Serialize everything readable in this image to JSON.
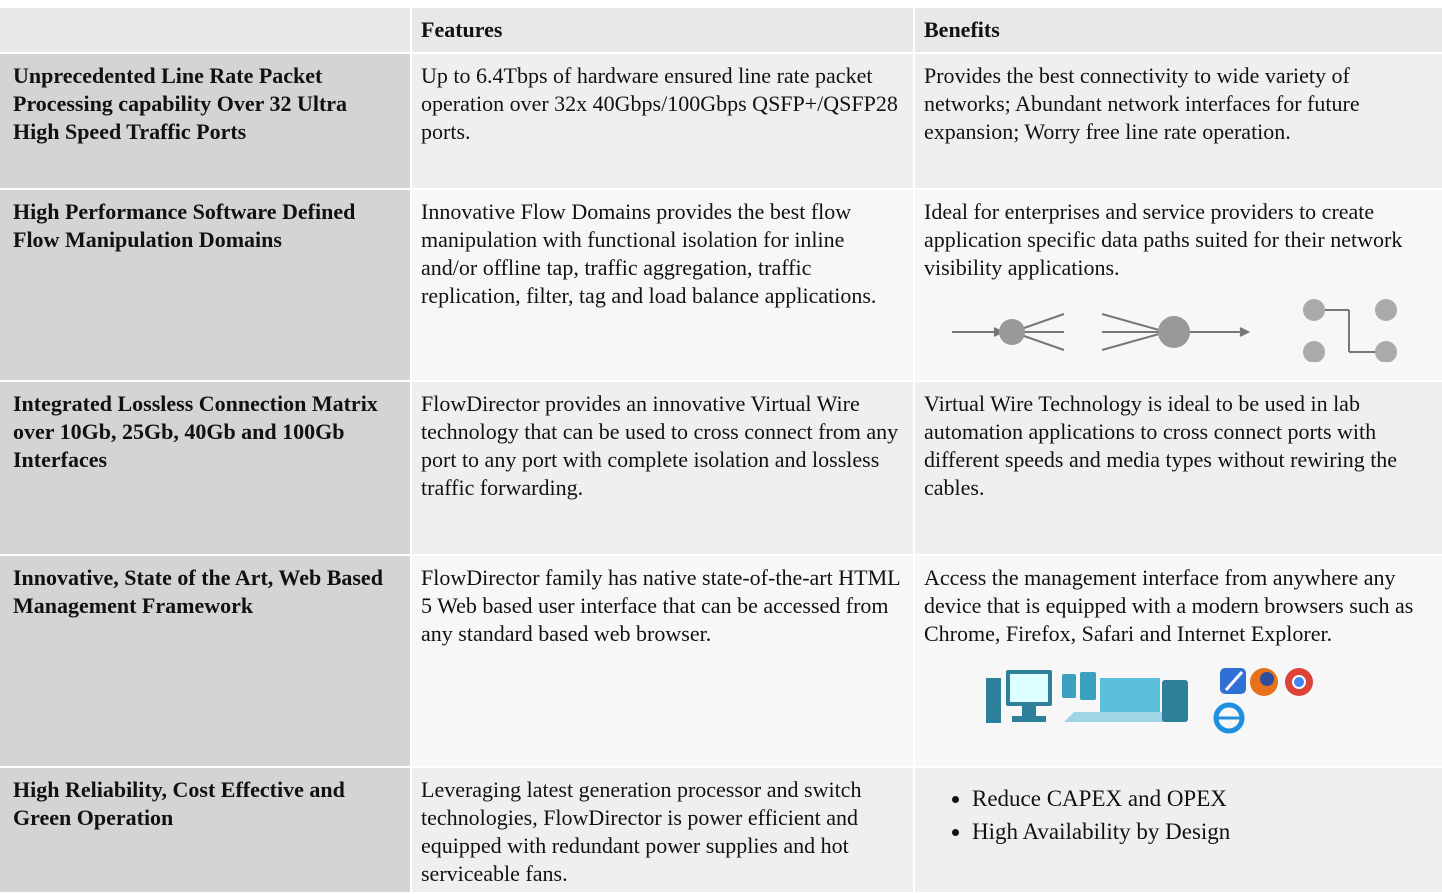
{
  "table": {
    "header": [
      "Features",
      "Benefits"
    ],
    "rows": [
      {
        "label": "Unprecedented Line Rate Packet Processing capability Over 32 Ultra High Speed Traffic Ports",
        "features": "Up to 6.4Tbps of hardware ensured line rate packet operation  over 32x 40Gbps/100Gbps QSFP+/QSFP28 ports.",
        "benefits": "Provides the best connectivity to wide variety of networks; Abundant network interfaces for future expansion; Worry free line rate operation."
      },
      {
        "label": "High Performance Software Defined Flow Manipulation Domains",
        "features": "Innovative Flow Domains provides the best flow manipulation with functional isolation for inline and/or offline tap, traffic aggregation, traffic replication,  filter, tag and load balance applications.",
        "benefits": "Ideal for enterprises and service providers to create application specific data paths suited for their network visibility applications."
      },
      {
        "label": "Integrated Lossless Connection Matrix over 10Gb, 25Gb, 40Gb and 100Gb Interfaces",
        "features": "FlowDirector provides an innovative Virtual Wire technology that can be used to cross connect from any port to any port with complete isolation and lossless traffic forwarding.",
        "benefits": "Virtual Wire Technology is ideal to be used in lab automation applications to cross connect ports with different speeds and media types without rewiring the cables."
      },
      {
        "label": "Innovative, State of the Art, Web Based Management Framework",
        "features": "FlowDirector family has native state-of-the-art HTML 5 Web based user interface that can be accessed from any standard based web browser.",
        "benefits": "Access the management interface from anywhere any device that is equipped with a modern browsers such as Chrome, Firefox, Safari and Internet Explorer."
      },
      {
        "label": "High Reliability, Cost Effective and Green Operation",
        "features": "Leveraging latest generation processor and switch technologies, FlowDirector is power efficient and equipped with redundant power supplies and hot serviceable fans.",
        "benefits": [
          "Reduce CAPEX and OPEX",
          "High Availability by Design"
        ]
      }
    ]
  }
}
